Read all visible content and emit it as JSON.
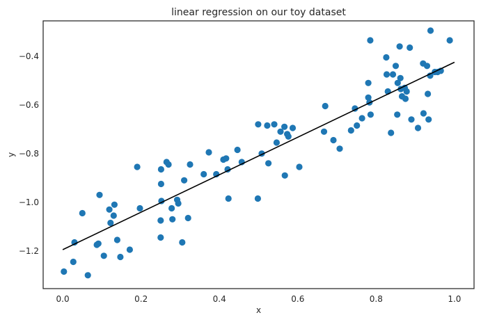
{
  "chart_data": {
    "type": "scatter",
    "title": "linear regression on our toy dataset",
    "xlabel": "x",
    "ylabel": "y",
    "xlim": [
      -0.05,
      1.05
    ],
    "ylim": [
      -1.355,
      -0.255
    ],
    "xticks": [
      0.0,
      0.2,
      0.4,
      0.6,
      0.8,
      1.0
    ],
    "xtick_labels": [
      "0.0",
      "0.2",
      "0.4",
      "0.6",
      "0.8",
      "1.0"
    ],
    "yticks": [
      -1.2,
      -1.0,
      -0.8,
      -0.6,
      -0.4
    ],
    "ytick_labels": [
      "−1.2",
      "−1.0",
      "−0.8",
      "−0.6",
      "−0.4"
    ],
    "grid": false,
    "colors": {
      "points": "#1f77b4",
      "line": "#000000",
      "frame": "#262626"
    },
    "series": [
      {
        "type": "scatter",
        "points": [
          [
            0.003,
            -1.285
          ],
          [
            0.027,
            -1.245
          ],
          [
            0.03,
            -1.165
          ],
          [
            0.05,
            -1.045
          ],
          [
            0.064,
            -1.3
          ],
          [
            0.087,
            -1.175
          ],
          [
            0.091,
            -1.17
          ],
          [
            0.094,
            -0.97
          ],
          [
            0.105,
            -1.22
          ],
          [
            0.119,
            -1.03
          ],
          [
            0.122,
            -1.085
          ],
          [
            0.13,
            -1.055
          ],
          [
            0.132,
            -1.01
          ],
          [
            0.139,
            -1.155
          ],
          [
            0.147,
            -1.225
          ],
          [
            0.171,
            -1.195
          ],
          [
            0.19,
            -0.855
          ],
          [
            0.197,
            -1.025
          ],
          [
            0.25,
            -1.145
          ],
          [
            0.25,
            -1.075
          ],
          [
            0.251,
            -0.865
          ],
          [
            0.251,
            -0.925
          ],
          [
            0.252,
            -0.995
          ],
          [
            0.265,
            -0.835
          ],
          [
            0.27,
            -0.845
          ],
          [
            0.278,
            -1.025
          ],
          [
            0.28,
            -1.07
          ],
          [
            0.292,
            -0.99
          ],
          [
            0.295,
            -1.005
          ],
          [
            0.305,
            -1.165
          ],
          [
            0.31,
            -0.91
          ],
          [
            0.32,
            -1.065
          ],
          [
            0.325,
            -0.845
          ],
          [
            0.36,
            -0.885
          ],
          [
            0.373,
            -0.795
          ],
          [
            0.392,
            -0.885
          ],
          [
            0.41,
            -0.825
          ],
          [
            0.417,
            -0.82
          ],
          [
            0.421,
            -0.865
          ],
          [
            0.423,
            -0.985
          ],
          [
            0.446,
            -0.785
          ],
          [
            0.457,
            -0.835
          ],
          [
            0.498,
            -0.985
          ],
          [
            0.499,
            -0.68
          ],
          [
            0.508,
            -0.8
          ],
          [
            0.522,
            -0.685
          ],
          [
            0.525,
            -0.84
          ],
          [
            0.54,
            -0.68
          ],
          [
            0.546,
            -0.755
          ],
          [
            0.556,
            -0.71
          ],
          [
            0.566,
            -0.69
          ],
          [
            0.567,
            -0.89
          ],
          [
            0.573,
            -0.72
          ],
          [
            0.576,
            -0.73
          ],
          [
            0.587,
            -0.695
          ],
          [
            0.604,
            -0.855
          ],
          [
            0.667,
            -0.71
          ],
          [
            0.67,
            -0.605
          ],
          [
            0.691,
            -0.745
          ],
          [
            0.707,
            -0.78
          ],
          [
            0.736,
            -0.705
          ],
          [
            0.746,
            -0.615
          ],
          [
            0.751,
            -0.685
          ],
          [
            0.764,
            -0.655
          ],
          [
            0.78,
            -0.51
          ],
          [
            0.78,
            -0.57
          ],
          [
            0.783,
            -0.59
          ],
          [
            0.785,
            -0.335
          ],
          [
            0.786,
            -0.64
          ],
          [
            0.826,
            -0.405
          ],
          [
            0.827,
            -0.475
          ],
          [
            0.83,
            -0.545
          ],
          [
            0.838,
            -0.715
          ],
          [
            0.843,
            -0.475
          ],
          [
            0.85,
            -0.44
          ],
          [
            0.854,
            -0.64
          ],
          [
            0.855,
            -0.51
          ],
          [
            0.86,
            -0.36
          ],
          [
            0.862,
            -0.49
          ],
          [
            0.863,
            -0.535
          ],
          [
            0.866,
            -0.565
          ],
          [
            0.873,
            -0.53
          ],
          [
            0.875,
            -0.575
          ],
          [
            0.878,
            -0.545
          ],
          [
            0.886,
            -0.365
          ],
          [
            0.89,
            -0.66
          ],
          [
            0.907,
            -0.695
          ],
          [
            0.92,
            -0.43
          ],
          [
            0.921,
            -0.635
          ],
          [
            0.93,
            -0.44
          ],
          [
            0.932,
            -0.555
          ],
          [
            0.934,
            -0.66
          ],
          [
            0.938,
            -0.48
          ],
          [
            0.939,
            -0.295
          ],
          [
            0.95,
            -0.465
          ],
          [
            0.957,
            -0.465
          ],
          [
            0.965,
            -0.46
          ],
          [
            0.988,
            -0.335
          ]
        ]
      },
      {
        "type": "line",
        "points": [
          [
            0.0,
            -1.195
          ],
          [
            1.0,
            -0.425
          ]
        ]
      }
    ]
  }
}
